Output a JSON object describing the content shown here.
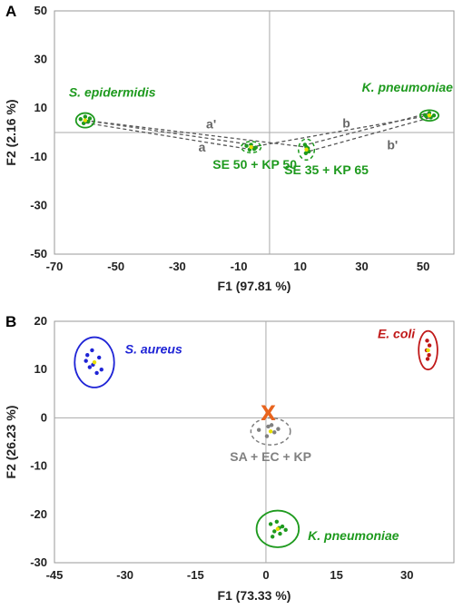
{
  "chart_data": [
    {
      "panel": "A",
      "type": "scatter",
      "xlabel": "F1 (97.81 %)",
      "ylabel": "F2 (2.16 %)",
      "xlim": [
        -70,
        60
      ],
      "ylim": [
        -50,
        50
      ],
      "xticks": [
        "-70",
        "-50",
        "-30",
        "-10",
        "10",
        "30",
        "50"
      ],
      "yticks": [
        "50",
        "30",
        "10",
        "-10",
        "-30",
        "-50"
      ],
      "grid": false,
      "colors": {
        "group": "#1e9a1e",
        "connector": "#555555",
        "text": "#666666",
        "point": "#3a8a2a",
        "centroid": "#e8e000"
      },
      "groups": [
        {
          "name": "S. epidermidis",
          "italic": true,
          "color": "#1e9a1e",
          "center": [
            -60,
            5
          ],
          "ellipse": {
            "rx": 3,
            "ry": 3,
            "ring": "solid"
          },
          "points": [
            [
              -61.5,
              5.5
            ],
            [
              -60,
              6.5
            ],
            [
              -59,
              4.5
            ],
            [
              -60.5,
              3.8
            ],
            [
              -58.5,
              5.8
            ]
          ]
        },
        {
          "name": "K. pneumoniae",
          "italic": true,
          "color": "#1e9a1e",
          "center": [
            52,
            7
          ],
          "ellipse": {
            "rx": 3,
            "ry": 2.2,
            "ring": "solid"
          },
          "points": [
            [
              50.5,
              7.2
            ],
            [
              52,
              8
            ],
            [
              53.5,
              7
            ],
            [
              52.5,
              6.2
            ],
            [
              51,
              6.6
            ]
          ]
        },
        {
          "name": "SE 50 + KP 50",
          "italic": false,
          "color": "#1e9a1e",
          "center": [
            -6,
            -6
          ],
          "ellipse": {
            "rx": 3.2,
            "ry": 2.3,
            "ring": "dashed"
          },
          "points": [
            [
              -7.5,
              -5.5
            ],
            [
              -6,
              -5
            ],
            [
              -4.5,
              -6.2
            ],
            [
              -6.5,
              -7
            ],
            [
              -5,
              -6.8
            ]
          ]
        },
        {
          "name": "SE 35 + KP 65",
          "italic": false,
          "color": "#1e9a1e",
          "center": [
            12,
            -7
          ],
          "ellipse": {
            "rx": 2.6,
            "ry": 4.3,
            "ring": "dashed"
          },
          "points": [
            [
              11.5,
              -5
            ],
            [
              12.5,
              -6.5
            ],
            [
              11.8,
              -8.5
            ],
            [
              12.8,
              -7.8
            ],
            [
              12,
              -6
            ]
          ]
        }
      ],
      "connectors": [
        {
          "label": "a",
          "from": [
            -60,
            4
          ],
          "to": [
            -6,
            -7
          ]
        },
        {
          "label": "a'",
          "from": [
            -60,
            5
          ],
          "to": [
            -6,
            -5
          ]
        },
        {
          "label": "b",
          "from": [
            52,
            8
          ],
          "to": [
            12,
            -5
          ]
        },
        {
          "label": "b'",
          "from": [
            52,
            6
          ],
          "to": [
            12,
            -8
          ]
        },
        {
          "label": "",
          "from": [
            -60,
            5
          ],
          "to": [
            12,
            -6
          ]
        },
        {
          "label": "",
          "from": [
            52,
            7
          ],
          "to": [
            -6,
            -6
          ]
        }
      ],
      "annotations": [
        {
          "text": "a",
          "x": -22,
          "y": -6
        },
        {
          "text": "a'",
          "x": -19,
          "y": 3.5
        },
        {
          "text": "b",
          "x": 25,
          "y": 4
        },
        {
          "text": "b'",
          "x": 40,
          "y": -5
        }
      ]
    },
    {
      "panel": "B",
      "type": "scatter",
      "xlabel": "F1 (73.33 %)",
      "ylabel": "F2 (26.23 %)",
      "xlim": [
        -45,
        40
      ],
      "ylim": [
        -30,
        20
      ],
      "xticks": [
        "-45",
        "-30",
        "-15",
        "0",
        "15",
        "30"
      ],
      "yticks": [
        "20",
        "10",
        "0",
        "-10",
        "-20",
        "-30"
      ],
      "grid": false,
      "colors": {
        "connector": "#888888",
        "marker": "#e8641e",
        "centroid": "#e8e000"
      },
      "groups": [
        {
          "name": "S. aureus",
          "italic": true,
          "color": "#1f24d6",
          "center": [
            -36.5,
            11.5
          ],
          "ellipse": {
            "rx": 4.2,
            "ry": 5.2,
            "ring": "solid"
          },
          "points": [
            [
              -38,
              13
            ],
            [
              -37,
              14
            ],
            [
              -35.5,
              12.5
            ],
            [
              -36.8,
              11
            ],
            [
              -35,
              10
            ],
            [
              -37.5,
              10.5
            ],
            [
              -36,
              9.3
            ],
            [
              -38.3,
              11.8
            ]
          ]
        },
        {
          "name": "E. coli",
          "italic": true,
          "color": "#c01818",
          "center": [
            34.5,
            14
          ],
          "ellipse": {
            "rx": 2,
            "ry": 4,
            "ring": "solid"
          },
          "points": [
            [
              34.3,
              16
            ],
            [
              34.8,
              15
            ],
            [
              34.2,
              14
            ],
            [
              34.7,
              13
            ],
            [
              34.4,
              12.2
            ]
          ]
        },
        {
          "name": "K. pneumoniae",
          "italic": true,
          "color": "#1e9a1e",
          "center": [
            2.5,
            -23
          ],
          "ellipse": {
            "rx": 4.5,
            "ry": 3.8,
            "ring": "solid"
          },
          "points": [
            [
              1,
              -22
            ],
            [
              2.3,
              -21.5
            ],
            [
              3.5,
              -22.5
            ],
            [
              1.8,
              -23.5
            ],
            [
              3,
              -24
            ],
            [
              4.2,
              -23.2
            ],
            [
              1.4,
              -24.6
            ],
            [
              2.8,
              -22.8
            ]
          ]
        },
        {
          "name": "SA + EC + KP",
          "italic": false,
          "color": "#808080",
          "center": [
            1,
            -2.8
          ],
          "ellipse": {
            "rx": 4.2,
            "ry": 2.8,
            "ring": "dashed"
          },
          "points": [
            [
              -1.5,
              -2.5
            ],
            [
              0.5,
              -1.8
            ],
            [
              1.8,
              -3
            ],
            [
              0.2,
              -3.8
            ],
            [
              2.6,
              -2.3
            ],
            [
              1.2,
              -1.5
            ]
          ]
        }
      ],
      "predicted": {
        "symbol": "X",
        "x": 0.5,
        "y": 0.8,
        "color": "#e8641e"
      }
    }
  ]
}
